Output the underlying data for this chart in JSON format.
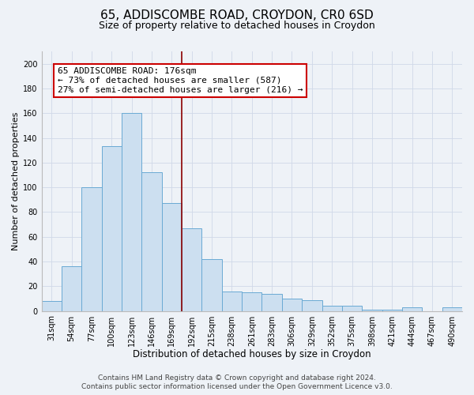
{
  "title": "65, ADDISCOMBE ROAD, CROYDON, CR0 6SD",
  "subtitle": "Size of property relative to detached houses in Croydon",
  "xlabel": "Distribution of detached houses by size in Croydon",
  "ylabel": "Number of detached properties",
  "categories": [
    "31sqm",
    "54sqm",
    "77sqm",
    "100sqm",
    "123sqm",
    "146sqm",
    "169sqm",
    "192sqm",
    "215sqm",
    "238sqm",
    "261sqm",
    "283sqm",
    "306sqm",
    "329sqm",
    "352sqm",
    "375sqm",
    "398sqm",
    "421sqm",
    "444sqm",
    "467sqm",
    "490sqm"
  ],
  "values": [
    8,
    36,
    100,
    133,
    160,
    112,
    87,
    67,
    42,
    16,
    15,
    14,
    10,
    9,
    4,
    4,
    1,
    1,
    3,
    0,
    3
  ],
  "bar_color": "#ccdff0",
  "bar_edge_color": "#6aaad4",
  "vline_x_index": 7.0,
  "vline_color": "#8b0000",
  "annotation_title": "65 ADDISCOMBE ROAD: 176sqm",
  "annotation_line1": "← 73% of detached houses are smaller (587)",
  "annotation_line2": "27% of semi-detached houses are larger (216) →",
  "annotation_box_color": "#ffffff",
  "annotation_box_edge_color": "#cc0000",
  "ylim": [
    0,
    210
  ],
  "yticks": [
    0,
    20,
    40,
    60,
    80,
    100,
    120,
    140,
    160,
    180,
    200
  ],
  "background_color": "#eef2f7",
  "footer_line1": "Contains HM Land Registry data © Crown copyright and database right 2024.",
  "footer_line2": "Contains public sector information licensed under the Open Government Licence v3.0.",
  "title_fontsize": 11,
  "subtitle_fontsize": 9,
  "xlabel_fontsize": 8.5,
  "ylabel_fontsize": 8,
  "tick_fontsize": 7,
  "annotation_fontsize": 8,
  "footer_fontsize": 6.5,
  "grid_color": "#d0d8e8"
}
